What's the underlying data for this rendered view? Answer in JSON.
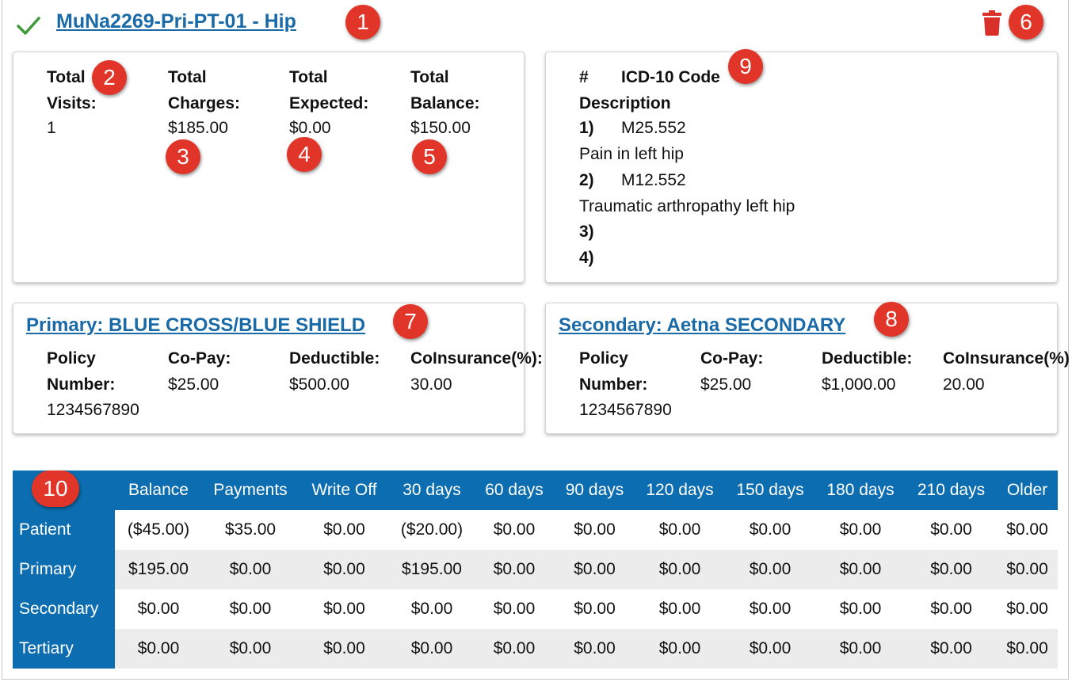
{
  "header": {
    "title": "MuNa2269-Pri-PT-01 - Hip",
    "status_icon": "check-icon",
    "delete_icon": "trash-icon",
    "title_color": "#1a6aa8",
    "delete_color": "#d9302a"
  },
  "totals": {
    "visits_label_1": "Total",
    "visits_label_2": "Visits:",
    "visits_value": "1",
    "charges_label_1": "Total",
    "charges_label_2": "Charges:",
    "charges_value": "$185.00",
    "expected_label_1": "Total",
    "expected_label_2": "Expected:",
    "expected_value": "$0.00",
    "balance_label_1": "Total",
    "balance_label_2": "Balance:",
    "balance_value": "$150.00"
  },
  "diagnoses": {
    "num_header": "#",
    "code_header": "ICD-10 Code",
    "desc_header": "Description",
    "items": [
      {
        "num": "1)",
        "code": "M25.552",
        "description": "Pain in left hip"
      },
      {
        "num": "2)",
        "code": "M12.552",
        "description": "Traumatic arthropathy left hip"
      },
      {
        "num": "3)",
        "code": "",
        "description": ""
      },
      {
        "num": "4)",
        "code": "",
        "description": ""
      }
    ]
  },
  "primary": {
    "title": "Primary: BLUE CROSS/BLUE SHIELD",
    "policy_label_1": "Policy",
    "policy_label_2": "Number:",
    "policy_value": "1234567890",
    "copay_label": "Co-Pay:",
    "copay_value": "$25.00",
    "deductible_label": "Deductible:",
    "deductible_value": "$500.00",
    "coins_label": "CoInsurance(%):",
    "coins_value": "30.00"
  },
  "secondary": {
    "title": "Secondary: Aetna SECONDARY",
    "policy_label_1": "Policy",
    "policy_label_2": "Number:",
    "policy_value": "1234567890",
    "copay_label": "Co-Pay:",
    "copay_value": "$25.00",
    "deductible_label": "Deductible:",
    "deductible_value": "$1,000.00",
    "coins_label": "CoInsurance(%)",
    "coins_value": "20.00"
  },
  "aging": {
    "header_color": "#0c6eb0",
    "columns": [
      "Balance",
      "Payments",
      "Write Off",
      "30 days",
      "60 days",
      "90 days",
      "120 days",
      "150 days",
      "180 days",
      "210 days",
      "Older"
    ],
    "rows": [
      {
        "label": "Patient",
        "cells": [
          "($45.00)",
          "$35.00",
          "$0.00",
          "($20.00)",
          "$0.00",
          "$0.00",
          "$0.00",
          "$0.00",
          "$0.00",
          "$0.00",
          "$0.00"
        ]
      },
      {
        "label": "Primary",
        "cells": [
          "$195.00",
          "$0.00",
          "$0.00",
          "$195.00",
          "$0.00",
          "$0.00",
          "$0.00",
          "$0.00",
          "$0.00",
          "$0.00",
          "$0.00"
        ]
      },
      {
        "label": "Secondary",
        "cells": [
          "$0.00",
          "$0.00",
          "$0.00",
          "$0.00",
          "$0.00",
          "$0.00",
          "$0.00",
          "$0.00",
          "$0.00",
          "$0.00",
          "$0.00"
        ]
      },
      {
        "label": "Tertiary",
        "cells": [
          "$0.00",
          "$0.00",
          "$0.00",
          "$0.00",
          "$0.00",
          "$0.00",
          "$0.00",
          "$0.00",
          "$0.00",
          "$0.00",
          "$0.00"
        ]
      }
    ]
  },
  "callouts": [
    "1",
    "2",
    "3",
    "4",
    "5",
    "6",
    "7",
    "8",
    "9",
    "10"
  ]
}
